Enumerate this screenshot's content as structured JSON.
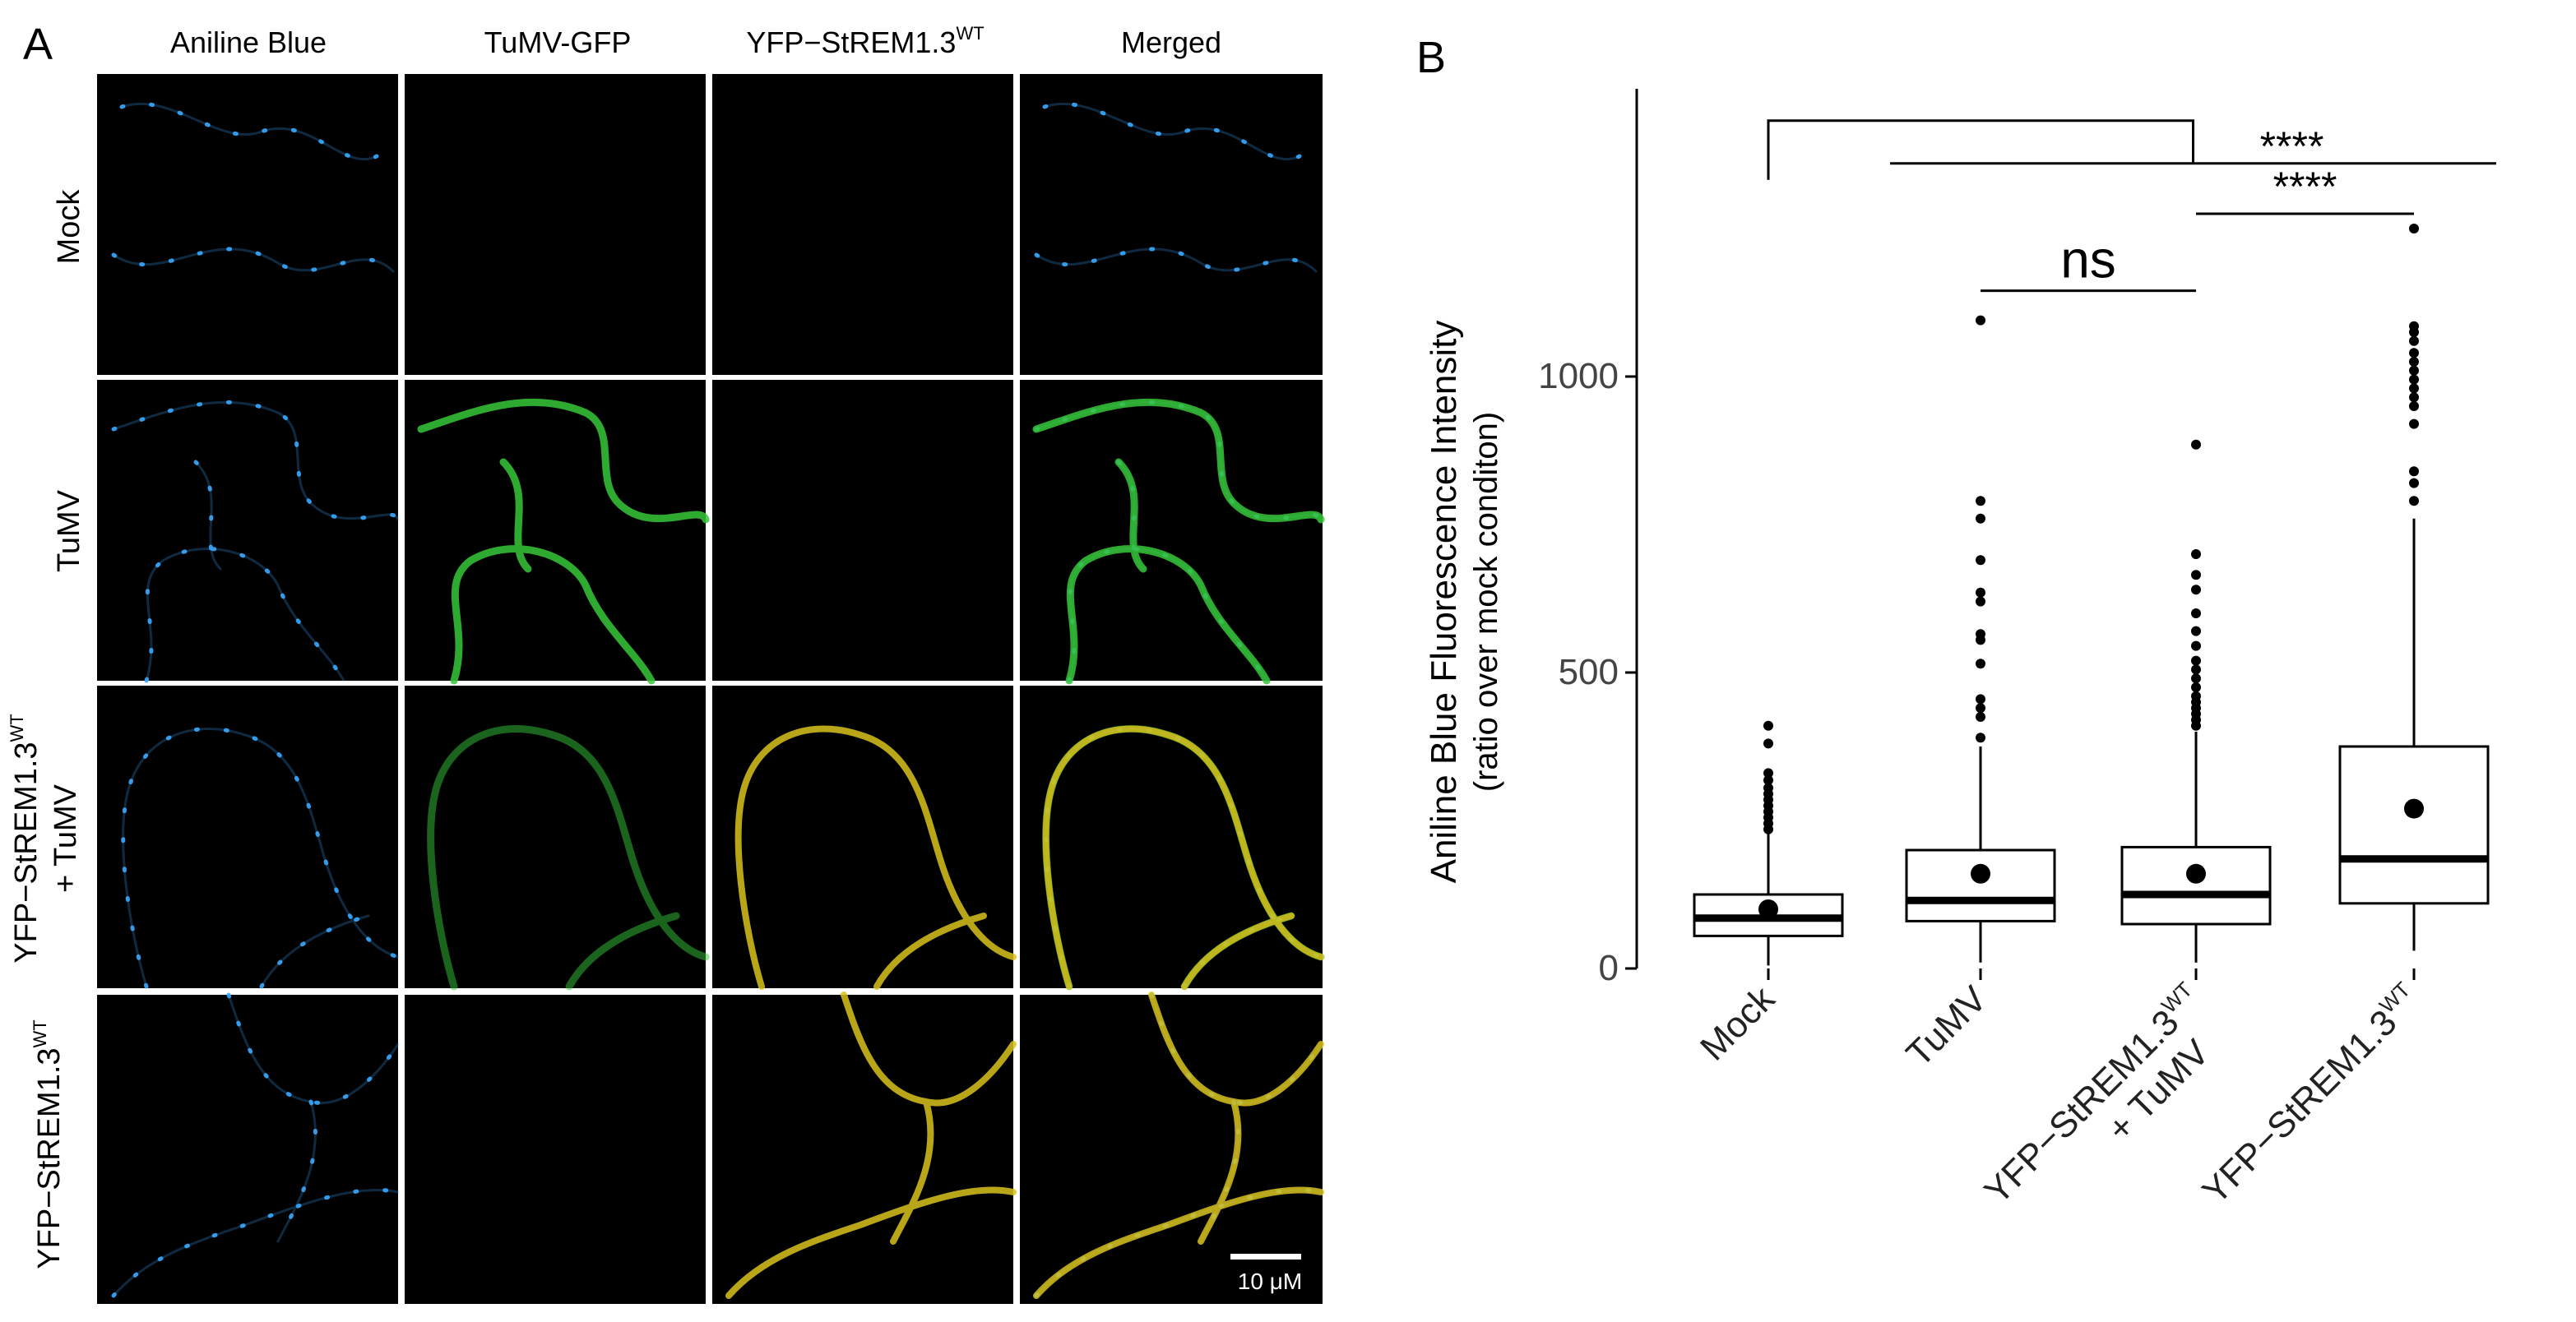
{
  "panel_a": {
    "label": "A",
    "column_headers": [
      "Aniline Blue",
      "TuMV-GFP",
      "YFP−StREM1.3",
      "Merged"
    ],
    "column_header_superscripts": [
      "",
      "",
      "WT",
      ""
    ],
    "row_labels": [
      {
        "lines": [
          "Mock"
        ],
        "sup": ""
      },
      {
        "lines": [
          "TuMV"
        ],
        "sup": ""
      },
      {
        "lines": [
          "YFP−StREM1.3",
          "+ TuMV"
        ],
        "sup": "WT"
      },
      {
        "lines": [
          "YFP−StREM1.3"
        ],
        "sup": "WT"
      }
    ],
    "scale_bar_label": "10 μM",
    "colors": {
      "aniline_blue": "#3aa9ff",
      "gfp": "#36c83a",
      "yfp": "#d9c21c",
      "background": "#000000"
    }
  },
  "panel_b": {
    "label": "B"
  },
  "chart_data": {
    "type": "box",
    "ylabel": "Aniline Blue Fluorescence Intensity",
    "ylabel_sub": "(ratio over mock conditon)",
    "xlabel": "",
    "ylim": [
      0,
      1450
    ],
    "yticks": [
      0,
      500,
      1000
    ],
    "grid": false,
    "categories": [
      {
        "label": "Mock",
        "sup": ""
      },
      {
        "label": "TuMV",
        "sup": ""
      },
      {
        "label": "YFP−StREM1.3",
        "sup": "WT",
        "line2": "+ TuMV"
      },
      {
        "label": "YFP−StREM1.3",
        "sup": "WT"
      }
    ],
    "boxes": [
      {
        "whisker_low": 5,
        "q1": 55,
        "median": 85,
        "q3": 125,
        "whisker_high": 228,
        "mean": 100,
        "outliers": [
          235,
          245,
          255,
          265,
          275,
          285,
          295,
          305,
          318,
          330,
          380,
          410
        ]
      },
      {
        "whisker_low": 10,
        "q1": 80,
        "median": 115,
        "q3": 200,
        "whisker_high": 375,
        "mean": 160,
        "outliers": [
          390,
          425,
          440,
          455,
          515,
          555,
          565,
          620,
          635,
          690,
          760,
          790,
          1095
        ]
      },
      {
        "whisker_low": 10,
        "q1": 75,
        "median": 125,
        "q3": 205,
        "whisker_high": 400,
        "mean": 160,
        "outliers": [
          410,
          420,
          430,
          440,
          450,
          460,
          475,
          490,
          505,
          520,
          545,
          570,
          600,
          640,
          665,
          700,
          885
        ]
      },
      {
        "whisker_low": 30,
        "q1": 110,
        "median": 185,
        "q3": 375,
        "whisker_high": 760,
        "mean": 270,
        "outliers": [
          790,
          820,
          840,
          920,
          950,
          965,
          980,
          995,
          1010,
          1025,
          1040,
          1060,
          1075,
          1085,
          1250
        ]
      }
    ],
    "annotations": [
      {
        "text": "ns",
        "from": 1,
        "to": 2,
        "y": 1145
      },
      {
        "text": "****",
        "from": 2,
        "to": 3,
        "y": 1275
      },
      {
        "text": "****",
        "group_from": 0,
        "group_to": [
          1,
          3
        ],
        "y": 1360
      }
    ]
  }
}
